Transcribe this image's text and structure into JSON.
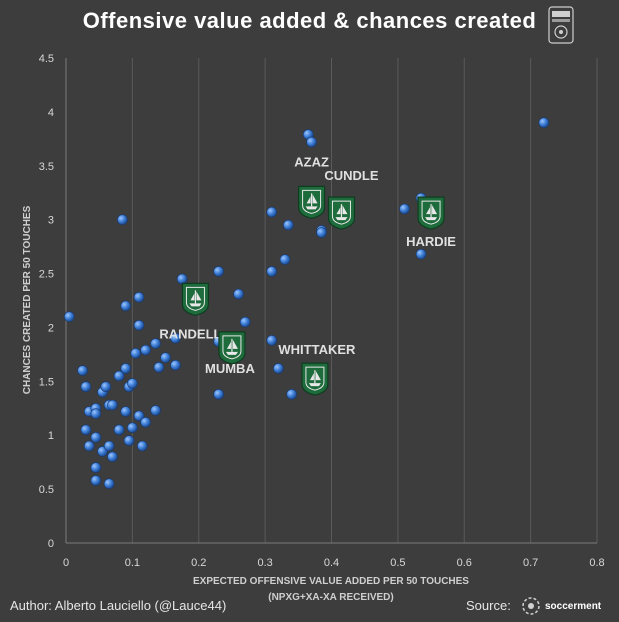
{
  "title": "Offensive value added & chances created",
  "footer": {
    "author": "Author: Alberto Lauciello (@Lauce44)",
    "source_label": "Source:",
    "source_brand": "soccerment"
  },
  "logo_icon": "league-crest-icon",
  "source_icon": "soccerment-logo-icon",
  "colors": {
    "background": "#3d3d3d",
    "point": "#3f7fd6",
    "badge": "#1e6b3c",
    "gridline": "#5a5a5a"
  },
  "chart_data": {
    "type": "scatter",
    "title": "Offensive value added & chances created",
    "xlabel": "EXPECTED OFFENSIVE VALUE ADDED PER 50 TOUCHES",
    "xlabel2": "(NPXG+XA-XA RECEIVED)",
    "ylabel": "CHANCES CREATED PER 50 TOUCHES",
    "xlim": [
      0,
      0.8
    ],
    "ylim": [
      0,
      4.5
    ],
    "xticks": [
      "0",
      "0.1",
      "0.2",
      "0.3",
      "0.4",
      "0.5",
      "0.6",
      "0.7",
      "0.8"
    ],
    "yticks": [
      "0",
      "0.5",
      "1",
      "1.5",
      "2",
      "2.5",
      "3",
      "3.5",
      "4",
      "4.5"
    ],
    "grid": "vertical",
    "points": [
      [
        0.005,
        2.1
      ],
      [
        0.085,
        3.0
      ],
      [
        0.09,
        2.2
      ],
      [
        0.11,
        2.28
      ],
      [
        0.11,
        2.02
      ],
      [
        0.025,
        1.6
      ],
      [
        0.03,
        1.45
      ],
      [
        0.035,
        1.22
      ],
      [
        0.045,
        1.25
      ],
      [
        0.045,
        1.2
      ],
      [
        0.055,
        1.4
      ],
      [
        0.06,
        1.45
      ],
      [
        0.065,
        1.28
      ],
      [
        0.07,
        1.28
      ],
      [
        0.08,
        1.55
      ],
      [
        0.09,
        1.62
      ],
      [
        0.095,
        1.45
      ],
      [
        0.1,
        1.48
      ],
      [
        0.105,
        1.76
      ],
      [
        0.12,
        1.79
      ],
      [
        0.135,
        1.85
      ],
      [
        0.15,
        1.72
      ],
      [
        0.165,
        1.9
      ],
      [
        0.165,
        1.65
      ],
      [
        0.14,
        1.63
      ],
      [
        0.03,
        1.05
      ],
      [
        0.035,
        0.9
      ],
      [
        0.045,
        0.98
      ],
      [
        0.055,
        0.85
      ],
      [
        0.065,
        0.9
      ],
      [
        0.08,
        1.05
      ],
      [
        0.09,
        1.22
      ],
      [
        0.095,
        0.95
      ],
      [
        0.1,
        1.07
      ],
      [
        0.11,
        1.18
      ],
      [
        0.12,
        1.12
      ],
      [
        0.135,
        1.23
      ],
      [
        0.115,
        0.9
      ],
      [
        0.07,
        0.8
      ],
      [
        0.045,
        0.7
      ],
      [
        0.045,
        0.58
      ],
      [
        0.065,
        0.55
      ],
      [
        0.175,
        2.45
      ],
      [
        0.23,
        2.52
      ],
      [
        0.26,
        2.31
      ],
      [
        0.27,
        2.05
      ],
      [
        0.23,
        1.87
      ],
      [
        0.23,
        1.38
      ],
      [
        0.25,
        1.82
      ],
      [
        0.32,
        1.62
      ],
      [
        0.31,
        1.88
      ],
      [
        0.31,
        2.52
      ],
      [
        0.33,
        2.63
      ],
      [
        0.31,
        3.07
      ],
      [
        0.335,
        2.95
      ],
      [
        0.365,
        3.79
      ],
      [
        0.37,
        3.72
      ],
      [
        0.385,
        2.9
      ],
      [
        0.385,
        2.88
      ],
      [
        0.51,
        3.1
      ],
      [
        0.535,
        3.2
      ],
      [
        0.535,
        2.68
      ],
      [
        0.72,
        3.9
      ],
      [
        0.34,
        1.38
      ]
    ],
    "highlighted": [
      {
        "name": "AZAZ",
        "x": 0.37,
        "y": 3.17
      },
      {
        "name": "CUNDLE",
        "x": 0.415,
        "y": 3.07
      },
      {
        "name": "HARDIE",
        "x": 0.55,
        "y": 3.07
      },
      {
        "name": "RANDELL",
        "x": 0.195,
        "y": 2.27
      },
      {
        "name": "MUMBA",
        "x": 0.25,
        "y": 1.82
      },
      {
        "name": "WHITTAKER",
        "x": 0.375,
        "y": 1.53
      }
    ]
  }
}
